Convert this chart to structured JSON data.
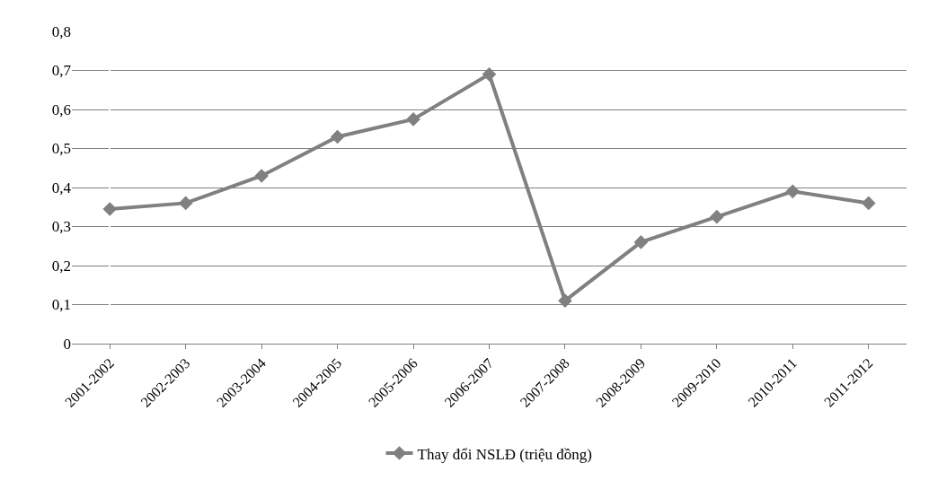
{
  "chart_data": {
    "type": "line",
    "categories": [
      "2001-2002",
      "2002-2003",
      "2003-2004",
      "2004-2005",
      "2005-2006",
      "2006-2007",
      "2007-2008",
      "2008-2009",
      "2009-2010",
      "2010-2011",
      "2011-2012"
    ],
    "series": [
      {
        "name": "Thay đổi NSLĐ (triệu đồng)",
        "color": "#808080",
        "values": [
          0.345,
          0.36,
          0.43,
          0.53,
          0.575,
          0.69,
          0.11,
          0.26,
          0.325,
          0.39,
          0.36
        ]
      }
    ],
    "ylim": [
      0,
      0.8
    ],
    "yticks": [
      0,
      {
        "value": 0.1,
        "label": "0,1"
      },
      {
        "value": 0.2,
        "label": "0,2"
      },
      {
        "value": 0.3,
        "label": "0,3"
      },
      {
        "value": 0.4,
        "label": "0,4"
      },
      {
        "value": 0.5,
        "label": "0,5"
      },
      {
        "value": 0.6,
        "label": "0,6"
      },
      {
        "value": 0.7,
        "label": "0,7"
      },
      {
        "value": 0.8,
        "label": "0,8"
      }
    ],
    "grid": "y",
    "legend": "bottom",
    "marker": "diamond",
    "line_style": "solid"
  }
}
